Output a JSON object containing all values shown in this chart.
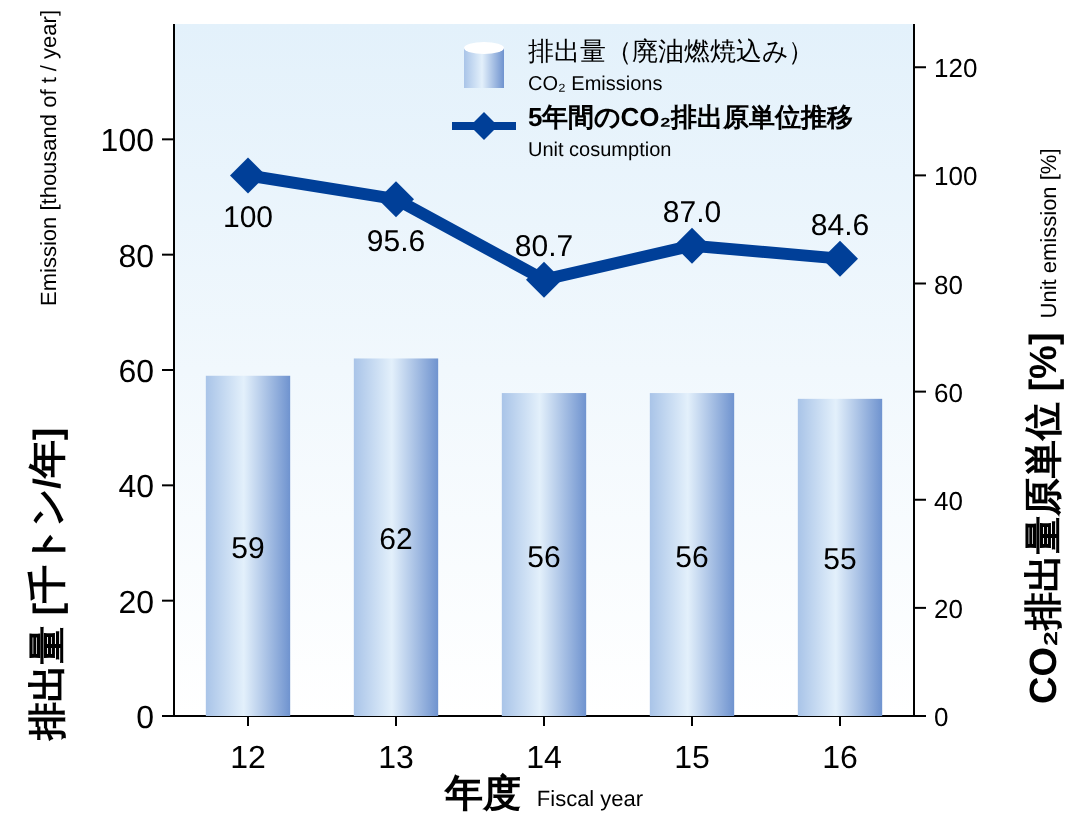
{
  "chart_data": {
    "type": "bar",
    "categories": [
      "12",
      "13",
      "14",
      "15",
      "16"
    ],
    "xlabel": "年度\nFiscal year",
    "ylabel": "排出量 [千トン/年]\nEmission [thousand of t / year]",
    "y2label": "CO₂排出量原単位 [%]\nUnit emission [%]",
    "ylim": [
      0,
      120
    ],
    "yticks": [
      0,
      20,
      40,
      60,
      80,
      100
    ],
    "y2lim": [
      0,
      128
    ],
    "y2ticks": [
      0,
      20,
      40,
      60,
      80,
      100,
      120
    ],
    "series": [
      {
        "name": "排出量（廃油燃焼込み）\nCO₂ Emissions",
        "color": "#a9c4e8",
        "values": [
          59,
          62,
          56,
          56,
          55
        ]
      },
      {
        "name": "5年間のCO₂排出原単位推移\nUnit cosumption",
        "type": "line",
        "axis": "y2",
        "color": "#003f98",
        "values": [
          100,
          95.6,
          80.7,
          87.0,
          84.6
        ],
        "value_labels": [
          "100",
          "95.6",
          "80.7",
          "87.0",
          "84.6"
        ],
        "marker": "diamond"
      }
    ],
    "data_labels": true,
    "legend": "top right",
    "grid": false
  }
}
